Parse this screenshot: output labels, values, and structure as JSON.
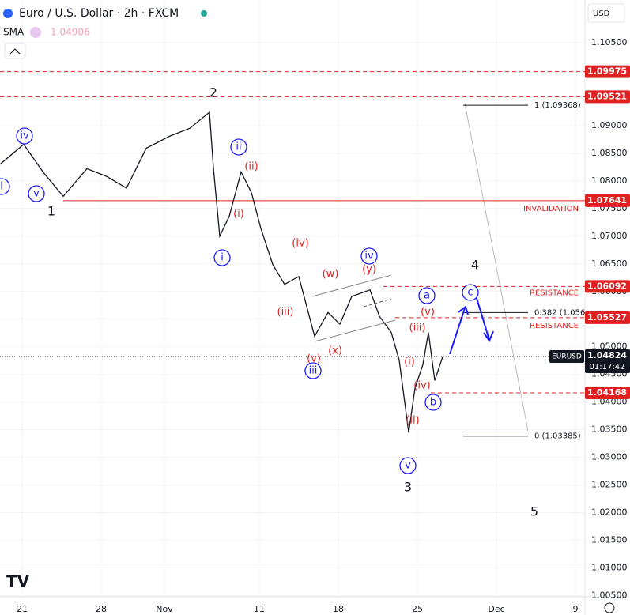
{
  "chart_data": {
    "type": "line",
    "title": "Euro / U.S. Dollar · 2h · FXCM",
    "indicator": {
      "name": "SMA",
      "value": "1.04906"
    },
    "currency": "USD",
    "x": [
      -1.4,
      0.1,
      1.35,
      2.6,
      4.1,
      5.35,
      6.6,
      7.85,
      9.35,
      10.6,
      11.85,
      12.1,
      12.5,
      13.1,
      13.85,
      14.5,
      15.1,
      15.85,
      16.6,
      17.5,
      18.5,
      19.35,
      20.1,
      20.85,
      22,
      22.6,
      23.35,
      23.85,
      24.45,
      24.85,
      25.35,
      25.7,
      26.1,
      26.6
    ],
    "series": [
      {
        "name": "EURUSD",
        "color": "#131722",
        "values": [
          1.083,
          1.0866,
          1.0815,
          1.0772,
          1.0822,
          1.0808,
          1.0787,
          1.0859,
          1.0881,
          1.0895,
          1.0924,
          1.0823,
          1.07,
          1.0736,
          1.0816,
          1.0779,
          1.0714,
          1.0649,
          1.0613,
          1.0627,
          1.0519,
          1.0562,
          1.0541,
          1.0591,
          1.0603,
          1.0555,
          1.0526,
          1.0476,
          1.0345,
          1.0425,
          1.0468,
          1.0526,
          1.0439,
          1.0482
        ]
      }
    ],
    "last_price": {
      "value": 1.04824,
      "label": "1.04824",
      "name": "EURUSD",
      "countdown": "01:17:42"
    },
    "xlim": [
      -1.4,
      35.6
    ],
    "xticks": [
      {
        "value": 0,
        "label": "21"
      },
      {
        "value": 5,
        "label": "28"
      },
      {
        "value": 9,
        "label": "Nov"
      },
      {
        "value": 15,
        "label": "11"
      },
      {
        "value": 20,
        "label": "18"
      },
      {
        "value": 25,
        "label": "25"
      },
      {
        "value": 30,
        "label": "Dec"
      },
      {
        "value": 35,
        "label": "9"
      }
    ],
    "ylim": [
      1.0048,
      1.1127
    ],
    "yticks": [
      {
        "value": 1.105,
        "label": "1.10500"
      },
      {
        "value": 1.1,
        "label": "1.10000"
      },
      {
        "value": 1.095,
        "label": "1.09500"
      },
      {
        "value": 1.09,
        "label": "1.09000"
      },
      {
        "value": 1.085,
        "label": "1.08500"
      },
      {
        "value": 1.08,
        "label": "1.08000"
      },
      {
        "value": 1.075,
        "label": "1.07500"
      },
      {
        "value": 1.07,
        "label": "1.07000"
      },
      {
        "value": 1.065,
        "label": "1.06500"
      },
      {
        "value": 1.06,
        "label": "1.06000"
      },
      {
        "value": 1.055,
        "label": "1.05500"
      },
      {
        "value": 1.05,
        "label": "1.05000"
      },
      {
        "value": 1.045,
        "label": "1.04500"
      },
      {
        "value": 1.04,
        "label": "1.04000"
      },
      {
        "value": 1.035,
        "label": "1.03500"
      },
      {
        "value": 1.03,
        "label": "1.03000"
      },
      {
        "value": 1.025,
        "label": "1.02500"
      },
      {
        "value": 1.02,
        "label": "1.02000"
      },
      {
        "value": 1.015,
        "label": "1.01500"
      },
      {
        "value": 1.01,
        "label": "1.01000"
      },
      {
        "value": 1.005,
        "label": "1.00500"
      }
    ],
    "levels": [
      {
        "value": 1.09975,
        "label": "1.09975",
        "style": "dashed"
      },
      {
        "value": 1.09521,
        "label": "1.09521",
        "style": "dashed"
      },
      {
        "value": 1.07641,
        "label": "1.07641",
        "style": "solid",
        "text": "INVALIDATION"
      },
      {
        "value": 1.06092,
        "label": "1.06092",
        "style": "dashed",
        "text": "RESISTANCE"
      },
      {
        "value": 1.05527,
        "label": "1.05527",
        "style": "dashed",
        "text": "RESISTANCE"
      },
      {
        "value": 1.04168,
        "label": "1.04168",
        "style": "dashed"
      }
    ],
    "level_color": "#e02020",
    "fib_levels": [
      {
        "value": 1.09368,
        "label": "1 (1.09368)"
      },
      {
        "value": 1.0562,
        "label": "0.382 (1.056"
      },
      {
        "value": 1.03385,
        "label": "0 (1.03385)"
      }
    ],
    "annotations": [
      {
        "text": "1",
        "style": "black"
      },
      {
        "text": "2",
        "style": "black"
      },
      {
        "text": "3",
        "style": "black"
      },
      {
        "text": "4",
        "style": "black"
      },
      {
        "text": "5",
        "style": "black"
      },
      {
        "text": "iv",
        "style": "circle"
      },
      {
        "text": "v",
        "style": "circle"
      },
      {
        "text": "i",
        "style": "circle"
      },
      {
        "text": "ii",
        "style": "circle"
      },
      {
        "text": "i",
        "style": "circle"
      },
      {
        "text": "iv",
        "style": "circle"
      },
      {
        "text": "iii",
        "style": "circle"
      },
      {
        "text": "v",
        "style": "circle"
      },
      {
        "text": "a",
        "style": "circle"
      },
      {
        "text": "b",
        "style": "circle"
      },
      {
        "text": "c",
        "style": "circle"
      },
      {
        "text": "(ii)",
        "style": "red"
      },
      {
        "text": "(i)",
        "style": "red"
      },
      {
        "text": "(iv)",
        "style": "red"
      },
      {
        "text": "(iii)",
        "style": "red"
      },
      {
        "text": "(w)",
        "style": "red"
      },
      {
        "text": "(y)",
        "style": "red"
      },
      {
        "text": "(x)",
        "style": "red"
      },
      {
        "text": "(v)",
        "style": "red"
      },
      {
        "text": "(v)",
        "style": "red"
      },
      {
        "text": "(iii)",
        "style": "red"
      },
      {
        "text": "(i)",
        "style": "red"
      },
      {
        "text": "(iv)",
        "style": "red"
      },
      {
        "text": "(ii)",
        "style": "red"
      }
    ]
  }
}
